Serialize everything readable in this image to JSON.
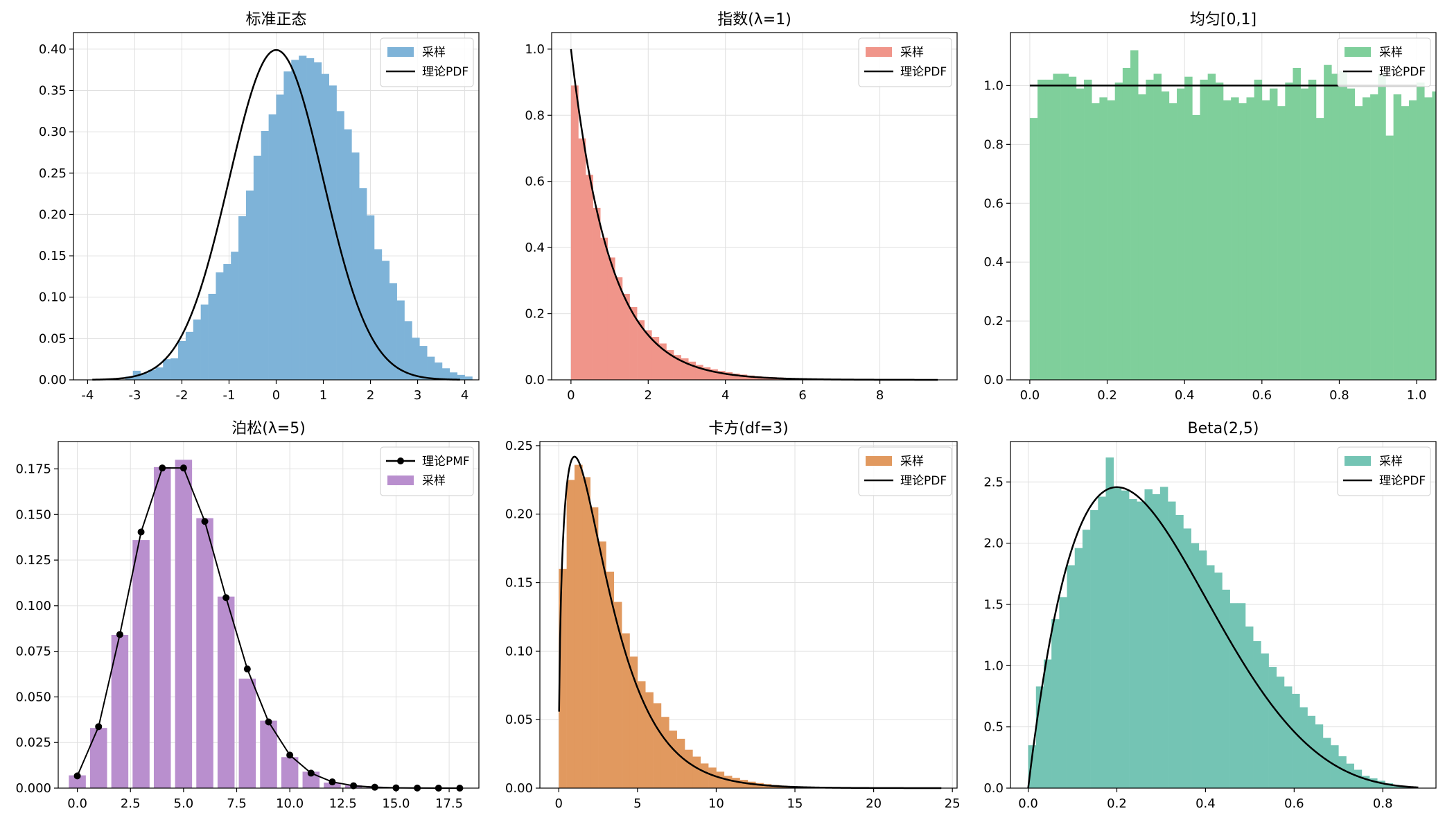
{
  "figure": {
    "background": "#ffffff",
    "grid": true,
    "grid_color": "#e0e0e0",
    "curve_color": "#000000"
  },
  "chart_data": [
    {
      "type": "bar",
      "title": "标准正态",
      "xlim": [
        -4.3,
        4.3
      ],
      "ylim": [
        0,
        0.42
      ],
      "xticks": [
        -4,
        -3,
        -2,
        -1,
        0,
        1,
        2,
        3,
        4
      ],
      "yticks": [
        0,
        0.05,
        0.1,
        0.15,
        0.2,
        0.25,
        0.3,
        0.35,
        0.4
      ],
      "xdec": 0,
      "ydec": 2,
      "legend_position": "top-right",
      "hist": {
        "name": "采样",
        "color": "#7eb3d8",
        "start": -3.2,
        "width": 0.16,
        "values": [
          0.004,
          0.011,
          0.008,
          0.012,
          0.015,
          0.025,
          0.026,
          0.047,
          0.058,
          0.073,
          0.091,
          0.104,
          0.13,
          0.14,
          0.155,
          0.198,
          0.229,
          0.271,
          0.301,
          0.321,
          0.345,
          0.373,
          0.387,
          0.392,
          0.389,
          0.384,
          0.37,
          0.356,
          0.325,
          0.303,
          0.275,
          0.232,
          0.199,
          0.158,
          0.144,
          0.117,
          0.096,
          0.071,
          0.051,
          0.041,
          0.028,
          0.021,
          0.014,
          0.009,
          0.006,
          0.004
        ]
      },
      "curve": {
        "name": "理论PDF",
        "dist": "normal",
        "x0": -3.9,
        "x1": 3.9
      },
      "legend": [
        "采样",
        "理论PDF"
      ]
    },
    {
      "type": "bar",
      "title": "指数(λ=1)",
      "xlim": [
        -0.5,
        10
      ],
      "ylim": [
        0,
        1.05
      ],
      "xticks": [
        0,
        2,
        4,
        6,
        8
      ],
      "yticks": [
        0,
        0.2,
        0.4,
        0.6,
        0.8,
        1.0
      ],
      "xdec": 0,
      "ydec": 1,
      "legend_position": "top-right",
      "hist": {
        "name": "采样",
        "color": "#f0958a",
        "start": 0,
        "width": 0.19,
        "values": [
          0.89,
          0.73,
          0.62,
          0.52,
          0.43,
          0.37,
          0.31,
          0.26,
          0.22,
          0.18,
          0.15,
          0.13,
          0.11,
          0.09,
          0.075,
          0.065,
          0.055,
          0.045,
          0.038,
          0.032,
          0.027,
          0.023,
          0.019,
          0.016,
          0.013,
          0.011,
          0.009,
          0.008,
          0.007,
          0.006,
          0.005,
          0.004,
          0.0035,
          0.003,
          0.0025,
          0.002,
          0.0017,
          0.0014,
          0.0012,
          0.001,
          0.0008,
          0.0007,
          0.0006,
          0.0005
        ]
      },
      "curve": {
        "name": "理论PDF",
        "dist": "expon",
        "x0": 0,
        "x1": 9.5
      },
      "legend": [
        "采样",
        "理论PDF"
      ]
    },
    {
      "type": "bar",
      "title": "均匀[0,1]",
      "xlim": [
        -0.05,
        1.05
      ],
      "ylim": [
        0,
        1.18
      ],
      "xticks": [
        0,
        0.2,
        0.4,
        0.6,
        0.8,
        1.0
      ],
      "yticks": [
        0,
        0.2,
        0.4,
        0.6,
        0.8,
        1.0
      ],
      "xdec": 1,
      "ydec": 1,
      "legend_position": "top-right",
      "hist": {
        "name": "采样",
        "color": "#7fcf9b",
        "start": 0,
        "width": 0.02,
        "values": [
          0.89,
          1.02,
          1.02,
          1.04,
          1.04,
          1.03,
          0.99,
          1.02,
          0.94,
          0.96,
          0.95,
          1.01,
          1.06,
          1.12,
          0.97,
          1.02,
          1.04,
          0.98,
          0.94,
          0.99,
          1.03,
          0.9,
          1.02,
          1.04,
          1.01,
          0.95,
          0.96,
          0.94,
          0.96,
          1.02,
          0.95,
          0.99,
          0.93,
          1.01,
          1.06,
          0.99,
          1.02,
          0.89,
          1.07,
          1.04,
          1.05,
          0.99,
          0.93,
          0.96,
          0.97,
          1.04,
          0.83,
          0.97,
          0.93,
          0.95,
          1.01,
          0.96,
          0.98,
          0.87,
          1.09,
          0.93,
          1.09,
          0.84,
          1.0,
          0.98
        ]
      },
      "curve": {
        "name": "理论PDF",
        "dist": "uniform",
        "x0": 0,
        "x1": 1
      },
      "legend": [
        "采样",
        "理论PDF"
      ]
    },
    {
      "type": "bar",
      "title": "泊松(λ=5)",
      "xlim": [
        -0.9,
        18.9
      ],
      "ylim": [
        0,
        0.19
      ],
      "xticks": [
        0,
        2.5,
        5,
        7.5,
        10,
        12.5,
        15,
        17.5
      ],
      "yticks": [
        0,
        0.025,
        0.05,
        0.075,
        0.1,
        0.125,
        0.15,
        0.175
      ],
      "xdec": 1,
      "ydec": 3,
      "legend_position": "top-right",
      "bars": {
        "name": "采样",
        "color": "#b98fce",
        "categories": [
          0,
          1,
          2,
          3,
          4,
          5,
          6,
          7,
          8,
          9,
          10,
          11,
          12,
          13,
          14
        ],
        "width": 0.8,
        "values": [
          0.007,
          0.033,
          0.084,
          0.136,
          0.176,
          0.18,
          0.148,
          0.105,
          0.06,
          0.037,
          0.017,
          0.009,
          0.003,
          0.0015,
          0.0008
        ]
      },
      "pmf": {
        "name": "理论PMF",
        "x": [
          0,
          1,
          2,
          3,
          4,
          5,
          6,
          7,
          8,
          9,
          10,
          11,
          12,
          13,
          14,
          15,
          16,
          17,
          18
        ],
        "values": [
          0.0067,
          0.0337,
          0.0842,
          0.1404,
          0.1755,
          0.1755,
          0.1462,
          0.1044,
          0.0653,
          0.0363,
          0.0181,
          0.0082,
          0.0034,
          0.0013,
          0.0005,
          0.00016,
          5e-05,
          1e-05,
          4e-06
        ]
      },
      "legend": [
        "理论PMF",
        "采样"
      ]
    },
    {
      "type": "bar",
      "title": "卡方(df=3)",
      "xlim": [
        -1.2,
        25.3
      ],
      "ylim": [
        0,
        0.253
      ],
      "xticks": [
        0,
        5,
        10,
        15,
        20,
        25
      ],
      "yticks": [
        0,
        0.05,
        0.1,
        0.15,
        0.2,
        0.25
      ],
      "xdec": 0,
      "ydec": 2,
      "legend_position": "top-right",
      "hist": {
        "name": "采样",
        "color": "#e1995f",
        "start": 0,
        "width": 0.5,
        "values": [
          0.16,
          0.225,
          0.236,
          0.227,
          0.205,
          0.18,
          0.158,
          0.136,
          0.113,
          0.096,
          0.078,
          0.07,
          0.062,
          0.052,
          0.042,
          0.036,
          0.028,
          0.023,
          0.018,
          0.015,
          0.012,
          0.009,
          0.0075,
          0.006,
          0.0047,
          0.0037,
          0.0029,
          0.0023,
          0.0018,
          0.0014,
          0.0011,
          0.0009,
          0.0007,
          0.0005,
          0.0004,
          0.0003,
          0.00025,
          0.0002,
          0.00015,
          0.0001
        ]
      },
      "curve": {
        "name": "理论PDF",
        "dist": "chi2",
        "df": 3,
        "x0": 0.02,
        "x1": 24.3
      },
      "legend": [
        "采样",
        "理论PDF"
      ]
    },
    {
      "type": "bar",
      "title": "Beta(2,5)",
      "xlim": [
        -0.04,
        0.92
      ],
      "ylim": [
        0,
        2.83
      ],
      "xticks": [
        0,
        0.2,
        0.4,
        0.6,
        0.8
      ],
      "yticks": [
        0,
        0.5,
        1.0,
        1.5,
        2.0,
        2.5
      ],
      "xdec": 1,
      "ydec": 1,
      "legend_position": "top-right",
      "hist": {
        "name": "采样",
        "color": "#74c4b4",
        "start": 0,
        "width": 0.0175,
        "values": [
          0.35,
          0.83,
          1.05,
          1.38,
          1.56,
          1.82,
          1.96,
          2.11,
          2.27,
          2.38,
          2.7,
          2.45,
          2.43,
          2.36,
          2.34,
          2.44,
          2.4,
          2.46,
          2.34,
          2.23,
          2.12,
          2.0,
          1.94,
          1.82,
          1.76,
          1.62,
          1.51,
          1.51,
          1.32,
          1.2,
          1.1,
          0.99,
          0.91,
          0.83,
          0.77,
          0.66,
          0.59,
          0.52,
          0.41,
          0.35,
          0.26,
          0.2,
          0.15,
          0.1,
          0.08,
          0.06,
          0.04,
          0.02,
          0.01,
          0.01
        ]
      },
      "curve": {
        "name": "理论PDF",
        "dist": "beta",
        "a": 2,
        "b": 5,
        "x0": 0,
        "x1": 0.88
      },
      "legend": [
        "采样",
        "理论PDF"
      ]
    }
  ]
}
